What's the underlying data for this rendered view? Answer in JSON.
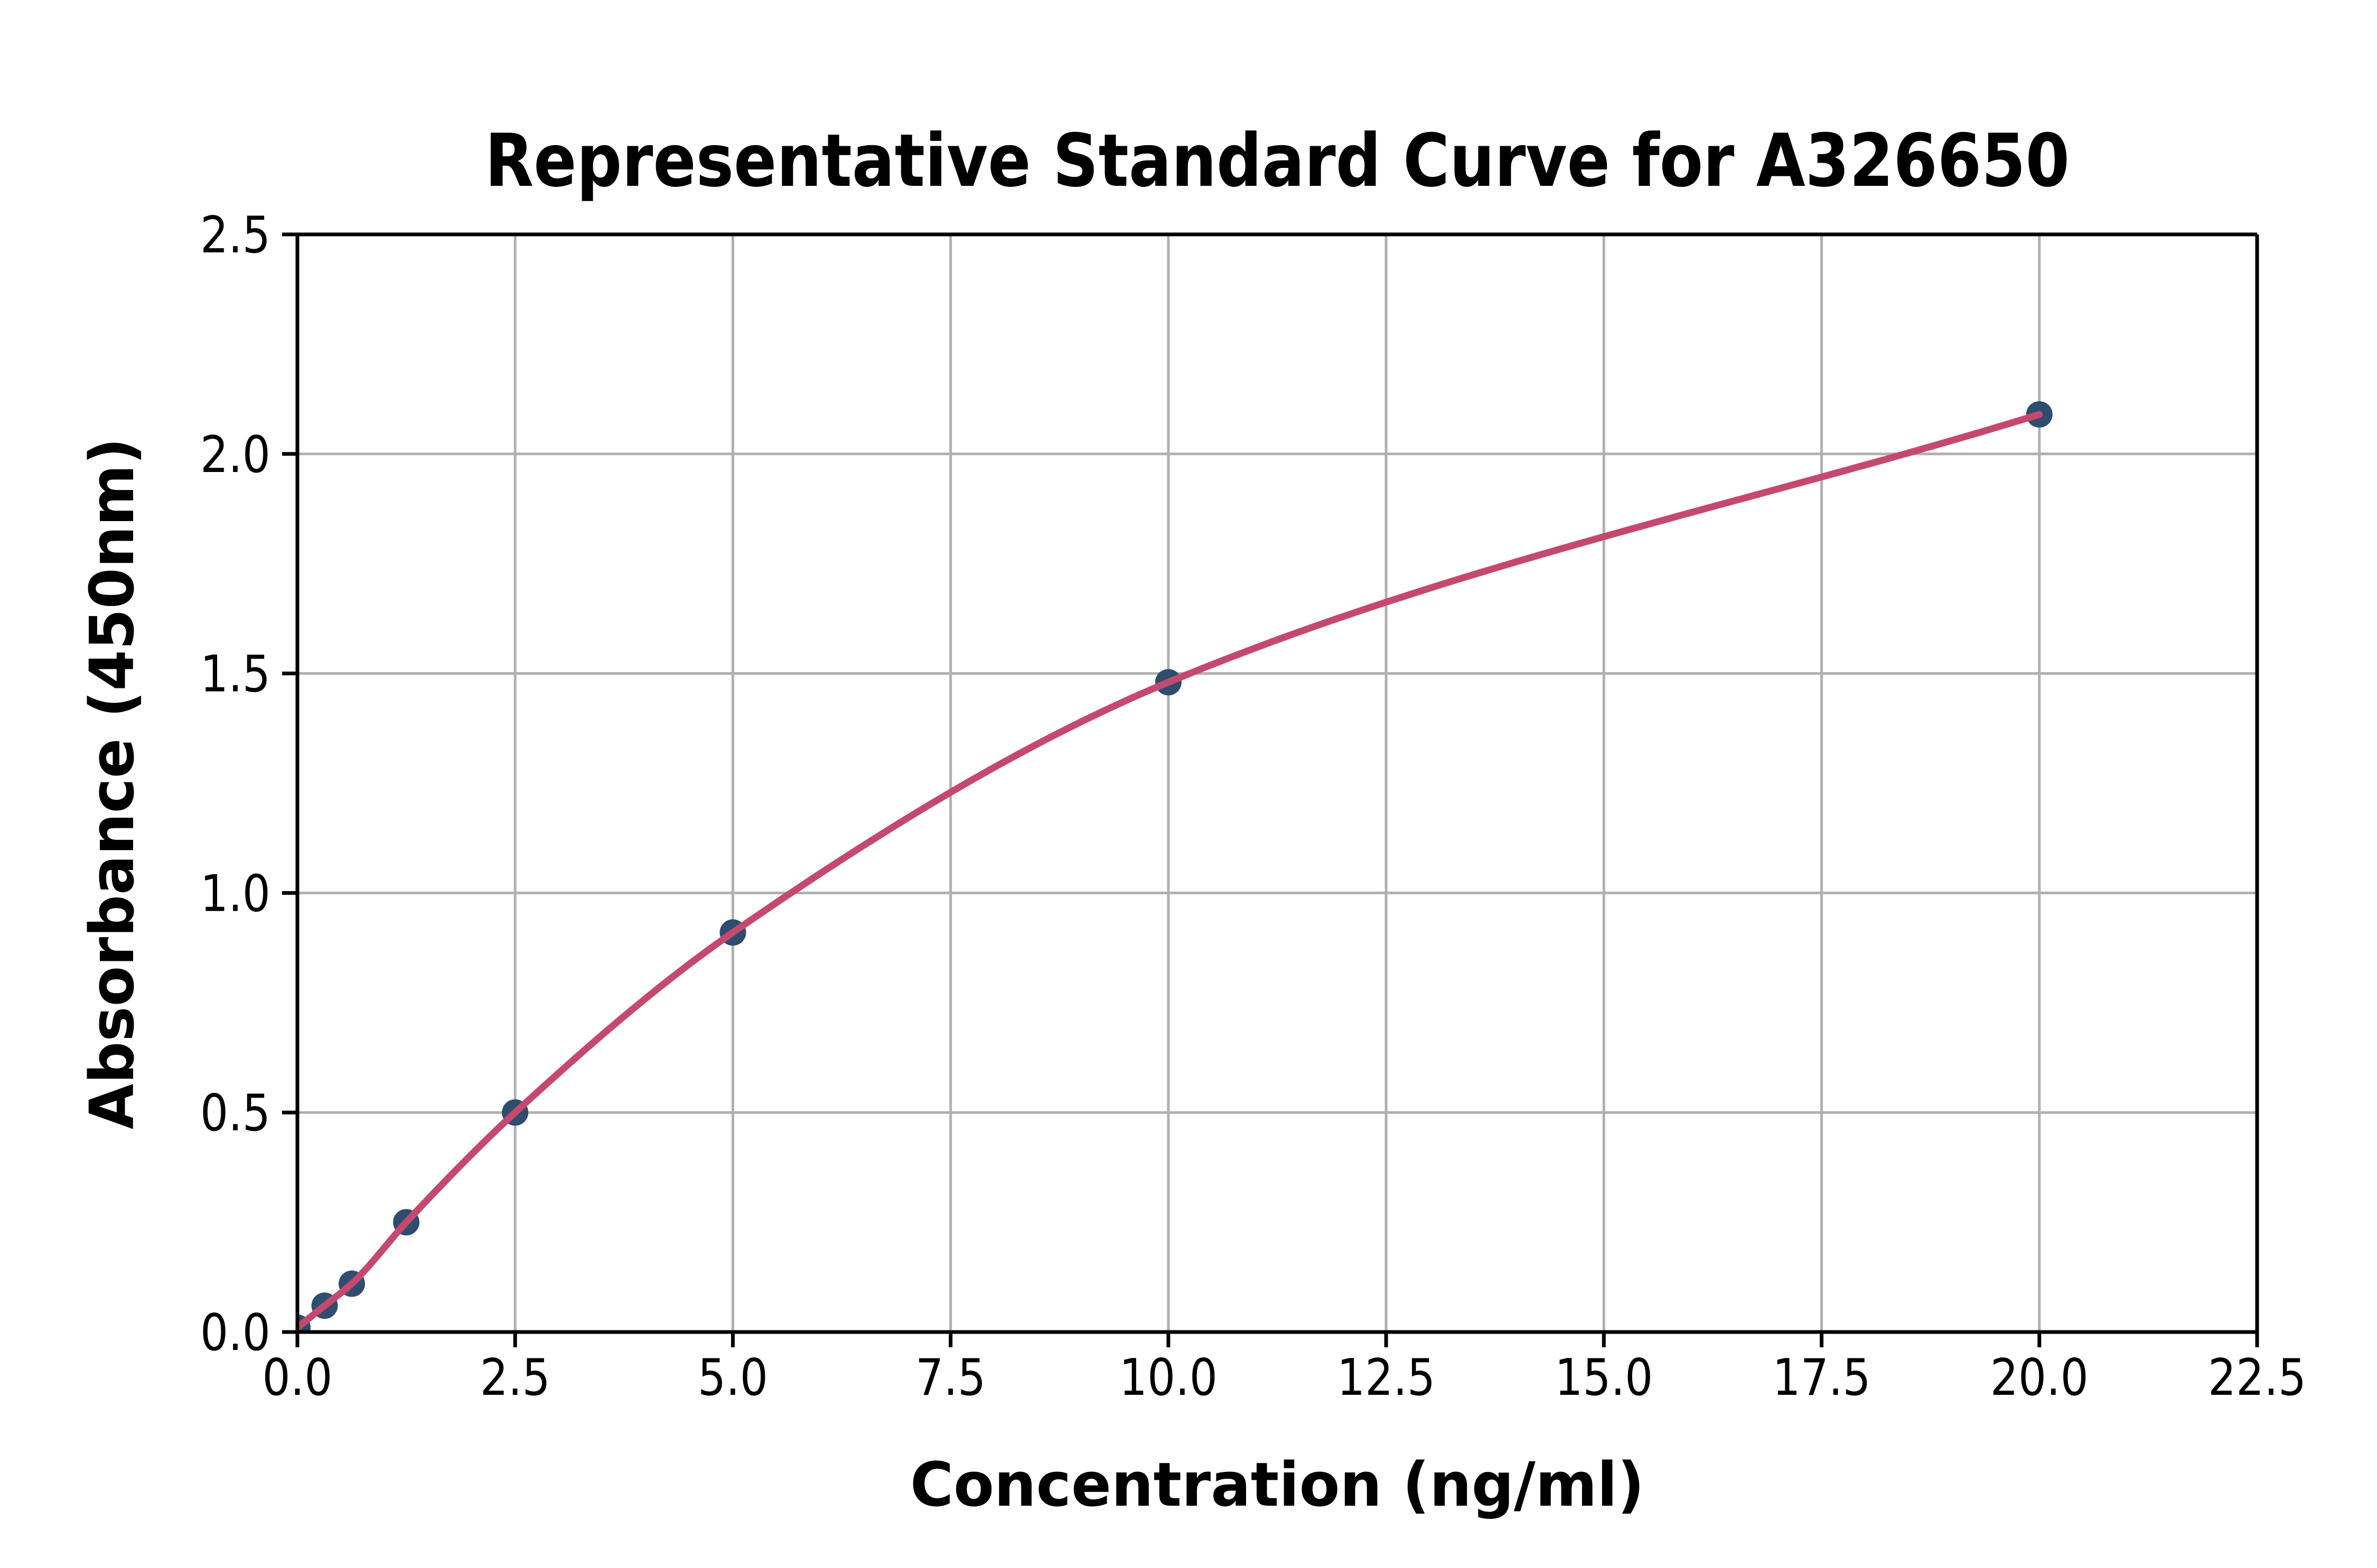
{
  "chart_data": {
    "type": "scatter",
    "title": "Representative Standard Curve for A326650",
    "xlabel": "Concentration (ng/ml)",
    "ylabel": "Absorbance (450nm)",
    "xlim": [
      0,
      22.5
    ],
    "ylim": [
      0,
      2.5
    ],
    "xticks": [
      0,
      2.5,
      5,
      7.5,
      10,
      12.5,
      15,
      17.5,
      20,
      22.5
    ],
    "xtick_labels": [
      "0.0",
      "2.5",
      "5.0",
      "7.5",
      "10.0",
      "12.5",
      "15.0",
      "17.5",
      "20.0",
      "22.5"
    ],
    "yticks": [
      0,
      0.5,
      1,
      1.5,
      2,
      2.5
    ],
    "ytick_labels": [
      "0.0",
      "0.5",
      "1.0",
      "1.5",
      "2.0",
      "2.5"
    ],
    "grid": true,
    "legend": false,
    "series": [
      {
        "name": "standard-points",
        "type": "scatter",
        "marker": "circle",
        "color": "#2e4d6f",
        "points": [
          {
            "x": 0,
            "y": 0.01
          },
          {
            "x": 0.3125,
            "y": 0.06
          },
          {
            "x": 0.625,
            "y": 0.11
          },
          {
            "x": 1.25,
            "y": 0.25
          },
          {
            "x": 2.5,
            "y": 0.5
          },
          {
            "x": 5,
            "y": 0.91
          },
          {
            "x": 10,
            "y": 1.48
          },
          {
            "x": 20,
            "y": 2.09
          }
        ]
      },
      {
        "name": "fitted-curve",
        "type": "line",
        "color": "#c5496e",
        "x_range": [
          0,
          20
        ],
        "through_points": true
      }
    ],
    "colors": {
      "grid": "#b0b0b0",
      "axes": "#000000",
      "background": "#ffffff",
      "marker": "#2e4d6f",
      "curve": "#c5496e"
    }
  }
}
